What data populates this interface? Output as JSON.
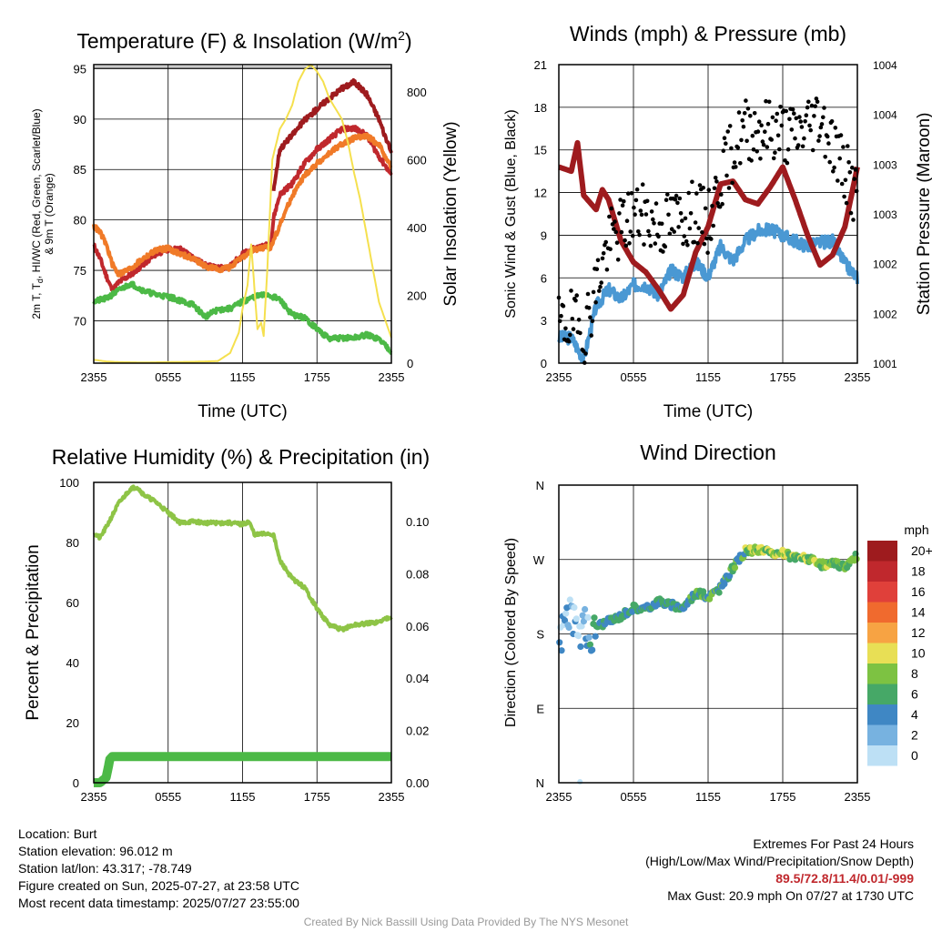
{
  "chart_data": [
    {
      "type": "line",
      "title_main": "Temperature (F) & Insolation (W/m",
      "title_sup": "2",
      "title_end": ")",
      "xlabel": "Time (UTC)",
      "ylabel_lines": [
        "2m T, T",
        "d",
        ", HI/WC (Red, Green, Scarlet/Blue)",
        "& 9m T (Orange)"
      ],
      "y2label": "Solar Insolation (Yellow)",
      "xticks": [
        "2355",
        "0555",
        "1155",
        "1755",
        "2355"
      ],
      "yticks": [
        70,
        75,
        80,
        85,
        90,
        95
      ],
      "ylim": [
        65.8,
        95.4
      ],
      "y2ticks": [
        0,
        200,
        400,
        600,
        800
      ],
      "y2lim": [
        0,
        880
      ],
      "xlim": [
        0,
        24
      ],
      "series": [
        {
          "color": "#c0282d",
          "width": 4,
          "points": [
            [
              0,
              77.5
            ],
            [
              0.5,
              76.2
            ],
            [
              1,
              74.5
            ],
            [
              1.5,
              73
            ],
            [
              2,
              73.8
            ],
            [
              3,
              74.6
            ],
            [
              4,
              75.6
            ],
            [
              5,
              76.6
            ],
            [
              6,
              77.1
            ],
            [
              7,
              77.1
            ],
            [
              8,
              76.3
            ],
            [
              9,
              75.5
            ],
            [
              10,
              75.2
            ],
            [
              11,
              75.4
            ],
            [
              12,
              76.6
            ],
            [
              13,
              77.2
            ],
            [
              14.3,
              77.6
            ],
            [
              14.5,
              80.2
            ],
            [
              15,
              82.5
            ],
            [
              16,
              83.6
            ],
            [
              17,
              85.6
            ],
            [
              18,
              87
            ],
            [
              19,
              88
            ],
            [
              20,
              89
            ],
            [
              21,
              89.1
            ],
            [
              22,
              88.4
            ],
            [
              23,
              86.3
            ],
            [
              24,
              84.5
            ]
          ]
        },
        {
          "color": "#f07a28",
          "width": 4,
          "points": [
            [
              0,
              79.4
            ],
            [
              0.5,
              78.8
            ],
            [
              1,
              77.6
            ],
            [
              1.5,
              75.6
            ],
            [
              2,
              74.6
            ],
            [
              3,
              75.2
            ],
            [
              4,
              76.2
            ],
            [
              5,
              77
            ],
            [
              6,
              77.2
            ],
            [
              7,
              76.6
            ],
            [
              8,
              76.2
            ],
            [
              9,
              75.4
            ],
            [
              10,
              75.1
            ],
            [
              11,
              75.3
            ],
            [
              12,
              76.3
            ],
            [
              13,
              77.1
            ],
            [
              14.3,
              77.3
            ],
            [
              14.5,
              78
            ],
            [
              15,
              79.5
            ],
            [
              16,
              82.4
            ],
            [
              17,
              84.4
            ],
            [
              18,
              85.6
            ],
            [
              19,
              86.6
            ],
            [
              20,
              87.5
            ],
            [
              21,
              88.1
            ],
            [
              22,
              88.3
            ],
            [
              23,
              87.5
            ],
            [
              24,
              85.2
            ]
          ]
        },
        {
          "color": "#4cb946",
          "width": 4,
          "points": [
            [
              0,
              71.9
            ],
            [
              1,
              72.2
            ],
            [
              2,
              73
            ],
            [
              3,
              73.7
            ],
            [
              4,
              73
            ],
            [
              5,
              72.6
            ],
            [
              6,
              72.4
            ],
            [
              7,
              72
            ],
            [
              8,
              71.6
            ],
            [
              9,
              70.4
            ],
            [
              10,
              71.1
            ],
            [
              11,
              71.2
            ],
            [
              12,
              71.9
            ],
            [
              13,
              72.4
            ],
            [
              14,
              72.6
            ],
            [
              15,
              72.1
            ],
            [
              16,
              70.6
            ],
            [
              17,
              70.3
            ],
            [
              18,
              69.2
            ],
            [
              19,
              68.2
            ],
            [
              20,
              68.3
            ],
            [
              21,
              68.3
            ],
            [
              22,
              68.6
            ],
            [
              23,
              68.2
            ],
            [
              24,
              67
            ]
          ]
        },
        {
          "color": "#9e1b1e",
          "width": 4,
          "points": [
            [
              14.5,
              83
            ],
            [
              15,
              87
            ],
            [
              16,
              88.4
            ],
            [
              17,
              89.9
            ],
            [
              18,
              91
            ],
            [
              19,
              92.1
            ],
            [
              20,
              93
            ],
            [
              21,
              93.7
            ],
            [
              22,
              92.5
            ],
            [
              23,
              90
            ],
            [
              24,
              86.6
            ]
          ]
        },
        {
          "color": "#f5e04e",
          "width": 2,
          "axis": "y2",
          "points": [
            [
              0,
              10
            ],
            [
              1,
              5
            ],
            [
              2,
              3
            ],
            [
              4,
              2
            ],
            [
              6,
              3
            ],
            [
              8,
              4
            ],
            [
              9,
              5
            ],
            [
              10,
              6
            ],
            [
              11,
              30
            ],
            [
              11.7,
              90
            ],
            [
              12,
              160
            ],
            [
              12.4,
              230
            ],
            [
              12.7,
              350
            ],
            [
              13,
              200
            ],
            [
              13.2,
              100
            ],
            [
              13.5,
              120
            ],
            [
              13.7,
              80
            ],
            [
              14,
              280
            ],
            [
              14.4,
              600
            ],
            [
              15,
              690
            ],
            [
              15.5,
              720
            ],
            [
              16,
              760
            ],
            [
              16.5,
              830
            ],
            [
              17,
              865
            ],
            [
              17.5,
              880
            ],
            [
              18,
              860
            ],
            [
              18.5,
              830
            ],
            [
              19,
              780
            ],
            [
              20,
              720
            ],
            [
              20.5,
              650
            ],
            [
              21,
              560
            ],
            [
              21.5,
              480
            ],
            [
              22,
              380
            ],
            [
              22.5,
              280
            ],
            [
              23,
              180
            ],
            [
              24,
              75
            ]
          ]
        }
      ]
    },
    {
      "type": "line+scatter",
      "title": "Winds (mph) & Pressure (mb)",
      "xlabel": "Time (UTC)",
      "ylabel": "Sonic Wind & Gust (Blue, Black)",
      "y2label": "Station Pressure (Maroon)",
      "xticks": [
        "2355",
        "0555",
        "1155",
        "1755",
        "2355"
      ],
      "yticks": [
        0,
        3,
        6,
        9,
        12,
        15,
        18,
        21
      ],
      "ylim": [
        0,
        21
      ],
      "y2ticks": [
        "1001",
        "1002",
        "1002",
        "1003",
        "1003",
        "1004",
        "1004"
      ],
      "xlim": [
        0,
        24
      ],
      "pressure_units_y": [
        [
          0,
          13.8
        ],
        [
          1,
          13.5
        ],
        [
          1.5,
          15.5
        ],
        [
          2,
          11.8
        ],
        [
          3,
          10.8
        ],
        [
          3.5,
          12.2
        ],
        [
          4,
          11.5
        ],
        [
          5,
          8.6
        ],
        [
          6,
          7.1
        ],
        [
          7,
          6.4
        ],
        [
          8,
          5.2
        ],
        [
          9,
          3.8
        ],
        [
          10,
          4.8
        ],
        [
          11,
          7.8
        ],
        [
          12,
          9.6
        ],
        [
          13,
          12.6
        ],
        [
          14,
          12.8
        ],
        [
          15,
          11.5
        ],
        [
          16,
          11.2
        ],
        [
          17,
          12.4
        ],
        [
          18,
          13.8
        ],
        [
          19,
          11.5
        ],
        [
          20,
          9
        ],
        [
          21,
          6.9
        ],
        [
          22,
          7.6
        ],
        [
          23,
          9.6
        ],
        [
          24,
          13.8
        ]
      ],
      "wind": [
        [
          0,
          1.8
        ],
        [
          1,
          1.8
        ],
        [
          2,
          0.3
        ],
        [
          3,
          4
        ],
        [
          4,
          5.2
        ],
        [
          5,
          4.5
        ],
        [
          6,
          5.5
        ],
        [
          7,
          5.5
        ],
        [
          8,
          4.8
        ],
        [
          9,
          6.5
        ],
        [
          10,
          6.1
        ],
        [
          11,
          7.1
        ],
        [
          12,
          6.1
        ],
        [
          13,
          8.2
        ],
        [
          14,
          7.2
        ],
        [
          15,
          8.6
        ],
        [
          16,
          9.3
        ],
        [
          17,
          9.4
        ],
        [
          18,
          9
        ],
        [
          19,
          8.6
        ],
        [
          20,
          8.2
        ],
        [
          21,
          8.5
        ],
        [
          22,
          8.6
        ],
        [
          23,
          7
        ],
        [
          24,
          6
        ]
      ],
      "gust": [
        [
          0,
          2.5
        ],
        [
          1,
          3
        ],
        [
          2,
          2
        ],
        [
          3,
          5.5
        ],
        [
          4,
          8.5
        ],
        [
          5,
          9.5
        ],
        [
          6,
          10.5
        ],
        [
          7,
          10.3
        ],
        [
          8,
          9.6
        ],
        [
          9,
          10
        ],
        [
          10,
          10.3
        ],
        [
          11,
          10.6
        ],
        [
          12,
          9.8
        ],
        [
          13,
          13
        ],
        [
          14,
          15
        ],
        [
          15,
          16.5
        ],
        [
          16,
          16.5
        ],
        [
          17,
          16.5
        ],
        [
          18,
          16.3
        ],
        [
          19,
          16
        ],
        [
          20,
          16.8
        ],
        [
          21,
          17.5
        ],
        [
          22,
          15.5
        ],
        [
          23,
          13.5
        ],
        [
          24,
          11.5
        ]
      ]
    },
    {
      "type": "line",
      "title": "Relative Humidity (%) & Precipitation (in)",
      "ylabel": "Percent & Precipitation",
      "xticks": [
        "2355",
        "0555",
        "1155",
        "1755",
        "2355"
      ],
      "yticks": [
        0,
        20,
        40,
        60,
        80,
        100
      ],
      "ylim": [
        0,
        100
      ],
      "y2ticks": [
        "0.00",
        "0.02",
        "0.04",
        "0.06",
        "0.08",
        "0.10"
      ],
      "y2lim": [
        0,
        0.115
      ],
      "xlim": [
        0,
        24
      ],
      "rh": [
        [
          0,
          83
        ],
        [
          0.5,
          81.5
        ],
        [
          1,
          85
        ],
        [
          2,
          93
        ],
        [
          3,
          98
        ],
        [
          3.5,
          98.5
        ],
        [
          4,
          96
        ],
        [
          5,
          93.5
        ],
        [
          6,
          90
        ],
        [
          7,
          86.5
        ],
        [
          8,
          87
        ],
        [
          9,
          86.5
        ],
        [
          10,
          86.5
        ],
        [
          11,
          86.5
        ],
        [
          12,
          86
        ],
        [
          12.5,
          87
        ],
        [
          13,
          82.5
        ],
        [
          14,
          83
        ],
        [
          14.5,
          82.5
        ],
        [
          15,
          74
        ],
        [
          16,
          68
        ],
        [
          17,
          65
        ],
        [
          18,
          58
        ],
        [
          19,
          52.5
        ],
        [
          20,
          51
        ],
        [
          21,
          52.5
        ],
        [
          22,
          53
        ],
        [
          23,
          53.5
        ],
        [
          24,
          55.5
        ]
      ],
      "precip_in": [
        [
          0,
          0
        ],
        [
          0.5,
          0
        ],
        [
          1,
          0.002
        ],
        [
          1.3,
          0.009
        ],
        [
          1.5,
          0.01
        ],
        [
          24,
          0.01
        ]
      ]
    },
    {
      "type": "scatter",
      "title": "Wind Direction",
      "ylabel": "Direction (Colored By Speed)",
      "xticks": [
        "2355",
        "0555",
        "1155",
        "1755",
        "2355"
      ],
      "yticks": [
        "N",
        "E",
        "S",
        "W",
        "N"
      ],
      "ylim": [
        0,
        360
      ],
      "xlim": [
        0,
        24
      ],
      "legend_title": "mph",
      "legend_labels": [
        "20+",
        "18",
        "16",
        "14",
        "12",
        "10",
        "8",
        "6",
        "4",
        "2",
        "0"
      ],
      "legend_colors": [
        "#9e1b1e",
        "#c0282d",
        "#e0403a",
        "#f06a2e",
        "#f7a343",
        "#e8df55",
        "#7dc242",
        "#46a867",
        "#3f87c4",
        "#77b2e0",
        "#bde0f5"
      ],
      "direction_series": [
        [
          0,
          165
        ],
        [
          0.5,
          200
        ],
        [
          1,
          210
        ],
        [
          1.5,
          170
        ],
        [
          2,
          200
        ],
        [
          2.5,
          170
        ],
        [
          3,
          190
        ],
        [
          4,
          195
        ],
        [
          5,
          202
        ],
        [
          6,
          212
        ],
        [
          7,
          210
        ],
        [
          8,
          220
        ],
        [
          9,
          215
        ],
        [
          10,
          212
        ],
        [
          11,
          230
        ],
        [
          12,
          225
        ],
        [
          13,
          235
        ],
        [
          14,
          260
        ],
        [
          15,
          280
        ],
        [
          16,
          282
        ],
        [
          17,
          278
        ],
        [
          18,
          277
        ],
        [
          19,
          272
        ],
        [
          20,
          272
        ],
        [
          21,
          263
        ],
        [
          22,
          265
        ],
        [
          23,
          262
        ],
        [
          24,
          275
        ]
      ]
    }
  ],
  "info_left": [
    "Location: Burt",
    "Station elevation: 96.012 m",
    "Station lat/lon: 43.317; -78.749",
    "Figure created on Sun, 2025-07-27, at 23:58 UTC",
    "Most recent data timestamp: 2025/07/27 23:55:00"
  ],
  "info_right": {
    "line1": "Extremes For Past 24 Hours",
    "line2": "(High/Low/Max Wind/Precipitation/Snow Depth)",
    "values": "89.5/72.8/11.4/0.01/-999",
    "gust": "Max Gust: 20.9 mph On 07/27 at 1730 UTC"
  },
  "credit": "Created By Nick Bassill Using Data Provided By The NYS Mesonet"
}
